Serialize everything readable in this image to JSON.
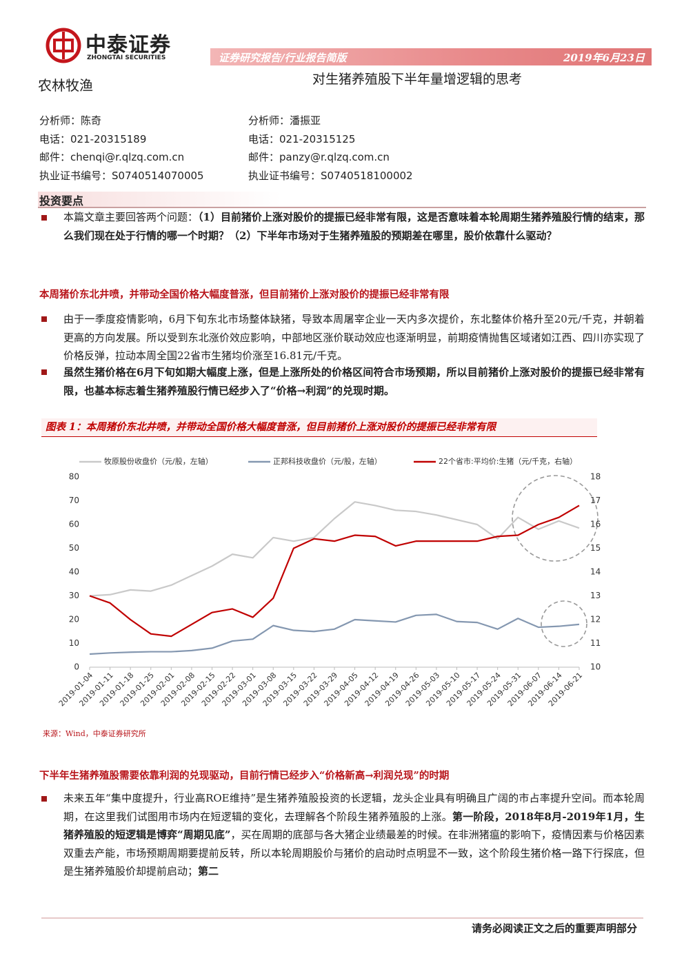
{
  "header": {
    "logo_name": "中泰证券",
    "logo_english": "ZHONGTAI SECURITIES",
    "banner": "证券研究报告/行业报告简版",
    "date": "2019年6月23日",
    "sector": "农林牧渔",
    "title": "对生猪养殖股下半年量增逻辑的思考"
  },
  "analysts": [
    [
      "分析师：陈奇",
      "电话：021-20315189",
      "邮件：chenqi@r.qlzq.com.cn",
      "执业证书编号：S0740514070005"
    ],
    [
      "分析师：潘振亚",
      "电话：021-20315125",
      "邮件：panzy@r.qlzq.com.cn",
      "执业证书编号：S0740518100002"
    ]
  ],
  "key_points_heading": "投资要点",
  "intro": [
    {
      "text": "本篇文章主要回答两个问题：",
      "bold": false
    },
    {
      "text": "（1）目前猪价上涨对股价的提振已经非常有限，这是否意味着本轮周期生猪养殖股行情的结束，那么我们现在处于行情的哪一个时期？（2）下半年市场对于生猪养殖股的预期差在哪里，股价依靠什么驱动？",
      "bold": true
    }
  ],
  "subheading_1": "本周猪价东北井喷，并带动全国价格大幅度普涨，但目前猪价上涨对股价的提振已经非常有限",
  "para_1": [
    {
      "text": "由于一季度疫情影响，6月下旬东北市场整体缺猪，导致本周屠宰企业一天内多次提价，东北整体价格升至20元/千克，并朝着更高的方向发展。所以受到东北涨价效应影响，中部地区涨价联动效应也逐渐明显，前期疫情抛售区域诸如江西、四川亦实现了价格反弹，拉动本周全国22省市生猪均价涨至16.81元/千克。",
      "bold": false
    }
  ],
  "para_2": [
    {
      "text": "虽然生猪价格在6月下旬如期大幅度上涨，但是上涨所处的价格区间符合市场预期，所以目前猪价上涨对股价的提振已经非常有限，也基本标志着生猪养殖股行情已经步入了“价格→利润”的兑现时期。",
      "bold": true
    }
  ],
  "chart_data": {
    "type": "line",
    "title": "图表 1：本周猪价东北井喷，并带动全国价格大幅度普涨，但目前猪价上涨对股价的提振已经非常有限",
    "categories": [
      "2019-01-04",
      "2019-01-11",
      "2019-01-18",
      "2019-01-25",
      "2019-02-01",
      "2019-02-08",
      "2019-02-15",
      "2019-02-22",
      "2019-03-01",
      "2019-03-08",
      "2019-03-15",
      "2019-03-22",
      "2019-03-29",
      "2019-04-05",
      "2019-04-12",
      "2019-04-19",
      "2019-04-26",
      "2019-05-03",
      "2019-05-10",
      "2019-05-17",
      "2019-05-24",
      "2019-05-31",
      "2019-06-07",
      "2019-06-14",
      "2019-06-21"
    ],
    "series": [
      {
        "name": "牧原股份收盘价（元/股，左轴）",
        "color": "#c9c9c9",
        "values": [
          30,
          30.5,
          32.5,
          32,
          34.5,
          38.5,
          42.5,
          47.5,
          46,
          54.5,
          53,
          54.5,
          62.5,
          69.5,
          68,
          66,
          65.5,
          64,
          62,
          60,
          54,
          63,
          58,
          61.5,
          58.5
        ]
      },
      {
        "name": "正邦科技收盘价（元/股，左轴）",
        "color": "#8497b0",
        "values": [
          5.5,
          6,
          6.3,
          6.5,
          6.5,
          7,
          8,
          11,
          11.8,
          17.5,
          15.5,
          15,
          16,
          20,
          19.5,
          19,
          21.8,
          22.2,
          19.2,
          18.8,
          16,
          20.5,
          16.8,
          17.2,
          18
        ]
      },
      {
        "name": "22个省市:平均价:生猪（元/千克，右轴）",
        "color": "#c00000",
        "axis": "y2",
        "values": [
          13,
          12.7,
          12,
          11.4,
          11.3,
          11.8,
          12.3,
          12.45,
          12.1,
          12.9,
          15,
          15.4,
          15.3,
          15.55,
          15.5,
          15.1,
          15.3,
          15.3,
          15.3,
          15.3,
          15.5,
          15.55,
          16,
          16.3,
          16.8
        ]
      }
    ],
    "ylim": [
      0,
      80
    ],
    "yticks": [
      0,
      10,
      20,
      30,
      40,
      50,
      60,
      70,
      80
    ],
    "y2lim": [
      10,
      18
    ],
    "y2ticks": [
      10,
      11,
      12,
      13,
      14,
      15,
      16,
      17,
      18
    ],
    "legend": "top",
    "source": "来源：Wind，中泰证券研究所"
  },
  "subheading_2": "下半年生猪养殖股需要依靠利润的兑现驱动，目前行情已经步入“价格新高→利润兑现”的时期",
  "para_3": [
    {
      "text": "未来五年“集中度提升，行业高ROE维持”是生猪养殖股投资的长逻辑，龙头企业具有明确且广阔的市占率提升空间。而本轮周期，在这里我们试图用市场内在短逻辑的变化，去理解各个阶段生猪养殖股的上涨。",
      "bold": false
    },
    {
      "text": "第一阶段，2018年8月-2019年1月，生猪养殖股的短逻辑是博弈“周期见底”",
      "bold": true
    },
    {
      "text": "，买在周期的底部与各大猪企业绩最差的时候。在非洲猪瘟的影响下，疫情因素与价格因素双重去产能，市场预期周期要提前反转，所以本轮周期股价与猪价的启动时点明显不一致，这个阶段生猪价格一路下行探底，但是生猪养殖股价却提前启动；",
      "bold": false
    },
    {
      "text": "第二",
      "bold": true
    }
  ],
  "footer": "请务必阅读正文之后的重要声明部分"
}
